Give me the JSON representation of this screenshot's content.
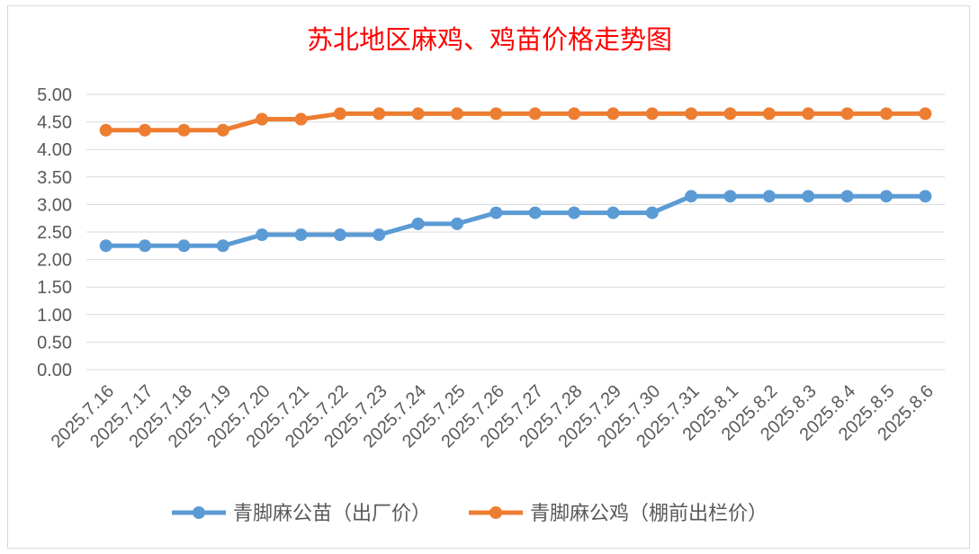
{
  "chart_data": {
    "type": "line",
    "title": "苏北地区麻鸡、鸡苗价格走势图",
    "categories": [
      "2025.7.16",
      "2025.7.17",
      "2025.7.18",
      "2025.7.19",
      "2025.7.20",
      "2025.7.21",
      "2025.7.22",
      "2025.7.23",
      "2025.7.24",
      "2025.7.25",
      "2025.7.26",
      "2025.7.27",
      "2025.7.28",
      "2025.7.29",
      "2025.7.30",
      "2025.7.31",
      "2025.8.1",
      "2025.8.2",
      "2025.8.3",
      "2025.8.4",
      "2025.8.5",
      "2025.8.6"
    ],
    "series": [
      {
        "name": "青脚麻公苗（出厂价）",
        "color": "#5B9BD5",
        "values": [
          2.25,
          2.25,
          2.25,
          2.25,
          2.45,
          2.45,
          2.45,
          2.45,
          2.65,
          2.65,
          2.85,
          2.85,
          2.85,
          2.85,
          2.85,
          3.15,
          3.15,
          3.15,
          3.15,
          3.15,
          3.15,
          3.15
        ]
      },
      {
        "name": "青脚麻公鸡（棚前出栏价）",
        "color": "#ED7D31",
        "values": [
          4.35,
          4.35,
          4.35,
          4.35,
          4.55,
          4.55,
          4.65,
          4.65,
          4.65,
          4.65,
          4.65,
          4.65,
          4.65,
          4.65,
          4.65,
          4.65,
          4.65,
          4.65,
          4.65,
          4.65,
          4.65,
          4.65
        ]
      }
    ],
    "ylim": [
      0,
      5
    ],
    "yticks": [
      "0.00",
      "0.50",
      "1.00",
      "1.50",
      "2.00",
      "2.50",
      "3.00",
      "3.50",
      "4.00",
      "4.50",
      "5.00"
    ],
    "grid": true,
    "legend_position": "bottom",
    "title_color": "#FF0000"
  }
}
